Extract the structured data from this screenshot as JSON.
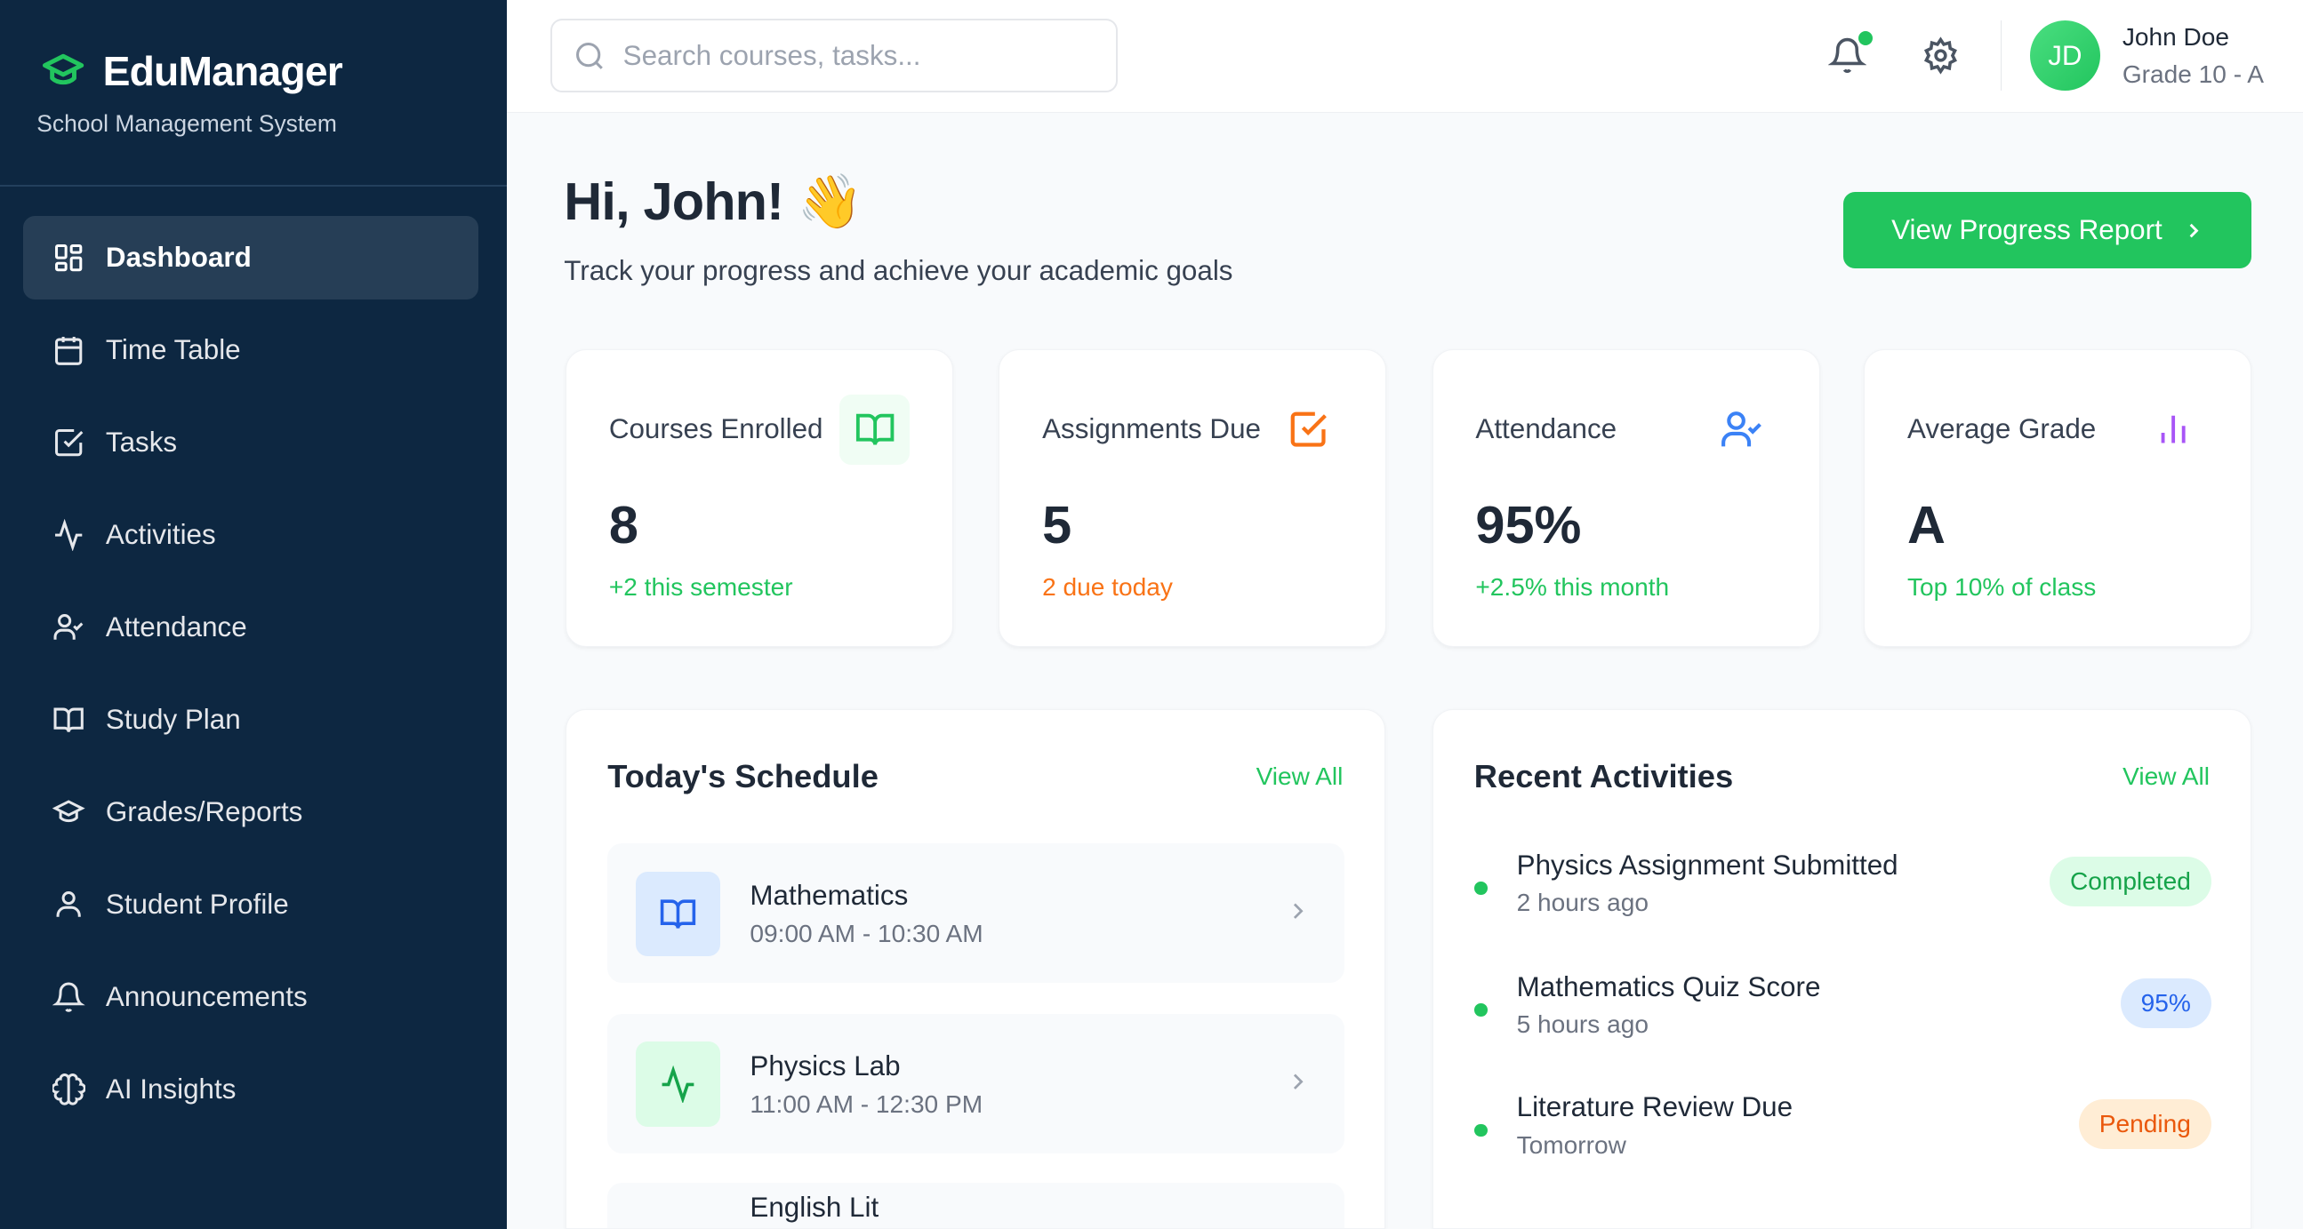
{
  "sidebar": {
    "app_name": "EduManager",
    "subtitle": "School Management System",
    "items": [
      {
        "label": "Dashboard",
        "icon": "grid-icon",
        "active": true
      },
      {
        "label": "Time Table",
        "icon": "calendar-icon"
      },
      {
        "label": "Tasks",
        "icon": "checkbox-icon"
      },
      {
        "label": "Activities",
        "icon": "activity-icon"
      },
      {
        "label": "Attendance",
        "icon": "user-check-icon"
      },
      {
        "label": "Study Plan",
        "icon": "book-icon"
      },
      {
        "label": "Grades/Reports",
        "icon": "graduation-cap-icon"
      },
      {
        "label": "Student Profile",
        "icon": "user-icon"
      },
      {
        "label": "Announcements",
        "icon": "bell-icon"
      },
      {
        "label": "AI Insights",
        "icon": "brain-icon"
      }
    ]
  },
  "header": {
    "search_placeholder": "Search courses, tasks...",
    "user": {
      "initials": "JD",
      "name": "John Doe",
      "grade": "Grade 10 - A"
    }
  },
  "main": {
    "greeting": "Hi, John!",
    "wave": "👋",
    "subtitle": "Track your progress and achieve your academic goals",
    "cta": "View Progress Report",
    "stats": [
      {
        "label": "Courses Enrolled",
        "value": "8",
        "sub": "+2 this semester",
        "color": "#22c55e"
      },
      {
        "label": "Assignments Due",
        "value": "5",
        "sub": "2 due today",
        "color": "#f97316"
      },
      {
        "label": "Attendance",
        "value": "95%",
        "sub": "+2.5% this month",
        "color": "#22c55e"
      },
      {
        "label": "Average Grade",
        "value": "A",
        "sub": "Top 10% of class",
        "color": "#22c55e"
      }
    ],
    "schedule": {
      "title": "Today's Schedule",
      "view_all": "View All",
      "items": [
        {
          "name": "Mathematics",
          "time": "09:00 AM - 10:30 AM"
        },
        {
          "name": "Physics Lab",
          "time": "11:00 AM - 12:30 PM"
        },
        {
          "name": "English Lit"
        }
      ]
    },
    "activities": {
      "title": "Recent Activities",
      "view_all": "View All",
      "items": [
        {
          "title": "Physics Assignment Submitted",
          "time": "2 hours ago",
          "badge": "Completed"
        },
        {
          "title": "Mathematics Quiz Score",
          "time": "5 hours ago",
          "badge": "95%"
        },
        {
          "title": "Literature Review Due",
          "time": "Tomorrow",
          "badge": "Pending"
        }
      ]
    }
  },
  "colors": {
    "sidebar": "#0d2741",
    "accent": "#22c55e",
    "orange": "#f97316",
    "blue": "#3b82f6",
    "purple": "#a855f7"
  }
}
